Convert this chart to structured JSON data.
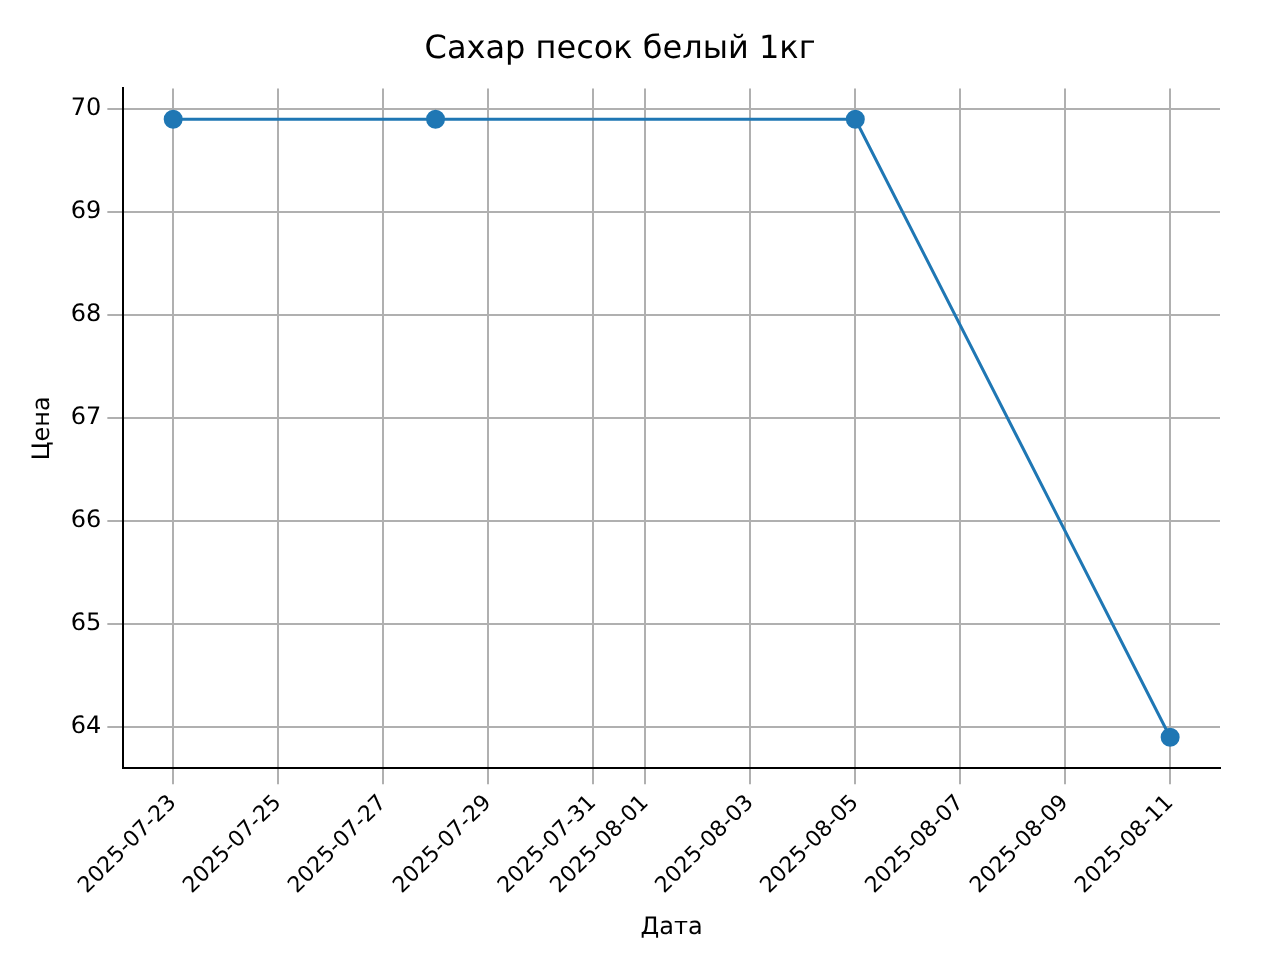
{
  "chart_data": {
    "type": "line",
    "title": "Сахар песок белый 1кг",
    "xlabel": "Дата",
    "ylabel": "Цена",
    "x": [
      "2025-07-23",
      "2025-07-28",
      "2025-08-05",
      "2025-08-11"
    ],
    "series": [
      {
        "color": "#1f77b4",
        "values": [
          69.9,
          69.9,
          69.9,
          63.9
        ]
      }
    ],
    "xlim": [
      "2025-07-22T01:12",
      "2025-08-11T22:48"
    ],
    "xticks": [
      "2025-07-23",
      "2025-07-25",
      "2025-07-27",
      "2025-07-29",
      "2025-07-31",
      "2025-08-01",
      "2025-08-03",
      "2025-08-05",
      "2025-08-07",
      "2025-08-09",
      "2025-08-11"
    ],
    "ylim": [
      63.6,
      70.2
    ],
    "yticks": [
      64,
      65,
      66,
      67,
      68,
      69,
      70
    ],
    "grid": true,
    "legend": false,
    "marker": "circle",
    "line_style": "solid"
  }
}
